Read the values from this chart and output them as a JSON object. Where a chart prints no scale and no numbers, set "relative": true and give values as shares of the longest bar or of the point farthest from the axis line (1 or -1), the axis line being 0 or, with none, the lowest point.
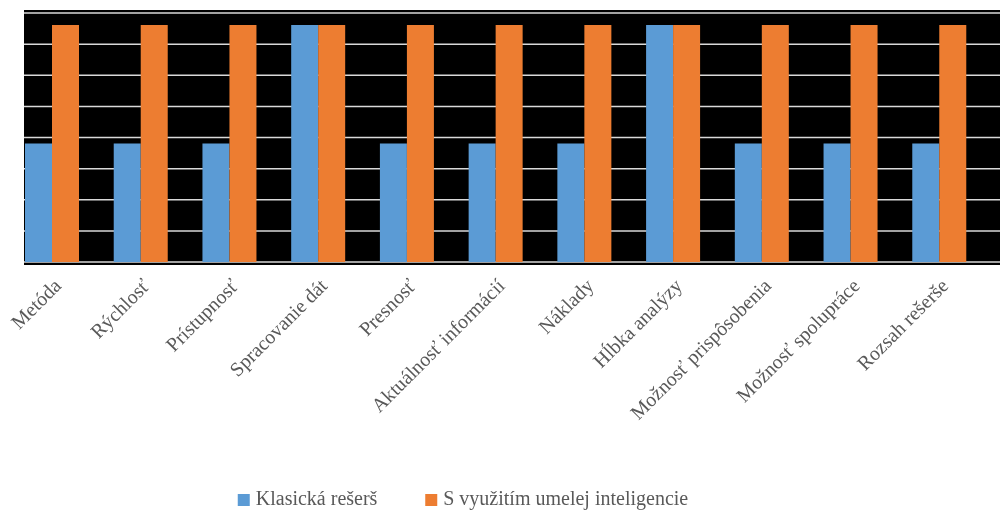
{
  "chart_data": {
    "type": "bar",
    "relative": true,
    "categories": [
      "Metóda",
      "Rýchlosť",
      "Prístupnosť",
      "Spracovanie dát",
      "Presnosť",
      "Aktuálnosť informácií",
      "Náklady",
      "Hĺbka analýzy",
      "Možnosť prispôsobenia",
      "Možnosť spolupráce",
      "Rozsah rešerše"
    ],
    "series": [
      {
        "name": "Klasická rešerš",
        "color": "#5b9bd5",
        "values": [
          0.5,
          0.5,
          0.5,
          1,
          0.5,
          0.5,
          0.5,
          1,
          0.5,
          0.5,
          0.5
        ]
      },
      {
        "name": "S využitím umelej inteligencie",
        "color": "#ed7d31",
        "values": [
          1,
          1,
          1,
          1,
          1,
          1,
          1,
          1,
          1,
          1,
          1
        ]
      }
    ],
    "grid": true,
    "legend": "bottom"
  }
}
